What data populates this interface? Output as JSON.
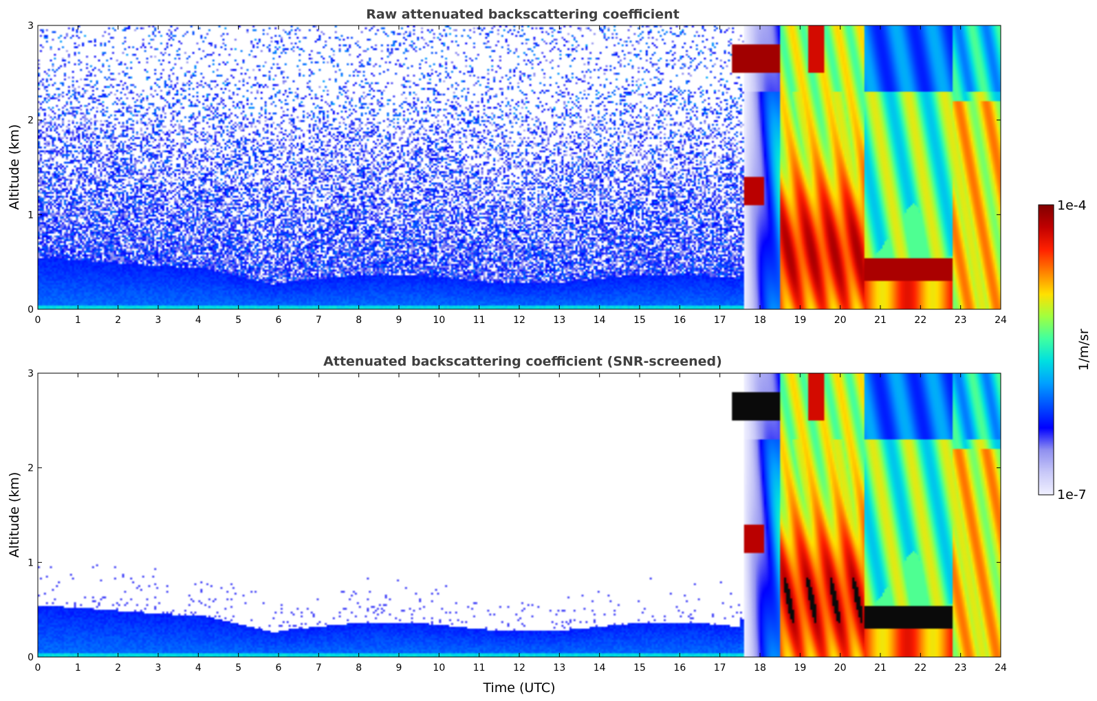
{
  "chart_data": [
    {
      "type": "heatmap",
      "title": "Raw attenuated backscattering coefficient",
      "xlabel": "",
      "ylabel": "Altitude (km)",
      "xlim": [
        0,
        24
      ],
      "ylim": [
        0,
        3
      ],
      "xticks": [
        "0",
        "1",
        "2",
        "3",
        "4",
        "5",
        "6",
        "7",
        "8",
        "9",
        "10",
        "11",
        "12",
        "13",
        "14",
        "15",
        "16",
        "17",
        "18",
        "19",
        "20",
        "21",
        "22",
        "23",
        "24"
      ],
      "yticks": [
        "0",
        "1",
        "2",
        "3"
      ],
      "screened": false
    },
    {
      "type": "heatmap",
      "title": "Attenuated backscattering coefficient (SNR-screened)",
      "xlabel": "Time (UTC)",
      "ylabel": "Altitude (km)",
      "xlim": [
        0,
        24
      ],
      "ylim": [
        0,
        3
      ],
      "xticks": [
        "0",
        "1",
        "2",
        "3",
        "4",
        "5",
        "6",
        "7",
        "8",
        "9",
        "10",
        "11",
        "12",
        "13",
        "14",
        "15",
        "16",
        "17",
        "18",
        "19",
        "20",
        "21",
        "22",
        "23",
        "24"
      ],
      "yticks": [
        "0",
        "1",
        "2",
        "3"
      ],
      "screened": true
    }
  ],
  "colorbar": {
    "max_label": "1e-4",
    "min_label": "1e-7",
    "unit_label": "1/m/sr",
    "colors": [
      "#f0f0ff",
      "#c8c8f8",
      "#9090f0",
      "#0000ff",
      "#0050ff",
      "#00a0ff",
      "#00e0e0",
      "#40ffa0",
      "#a0ff40",
      "#ffe000",
      "#ff8000",
      "#ff2000",
      "#c00000",
      "#800000"
    ]
  }
}
